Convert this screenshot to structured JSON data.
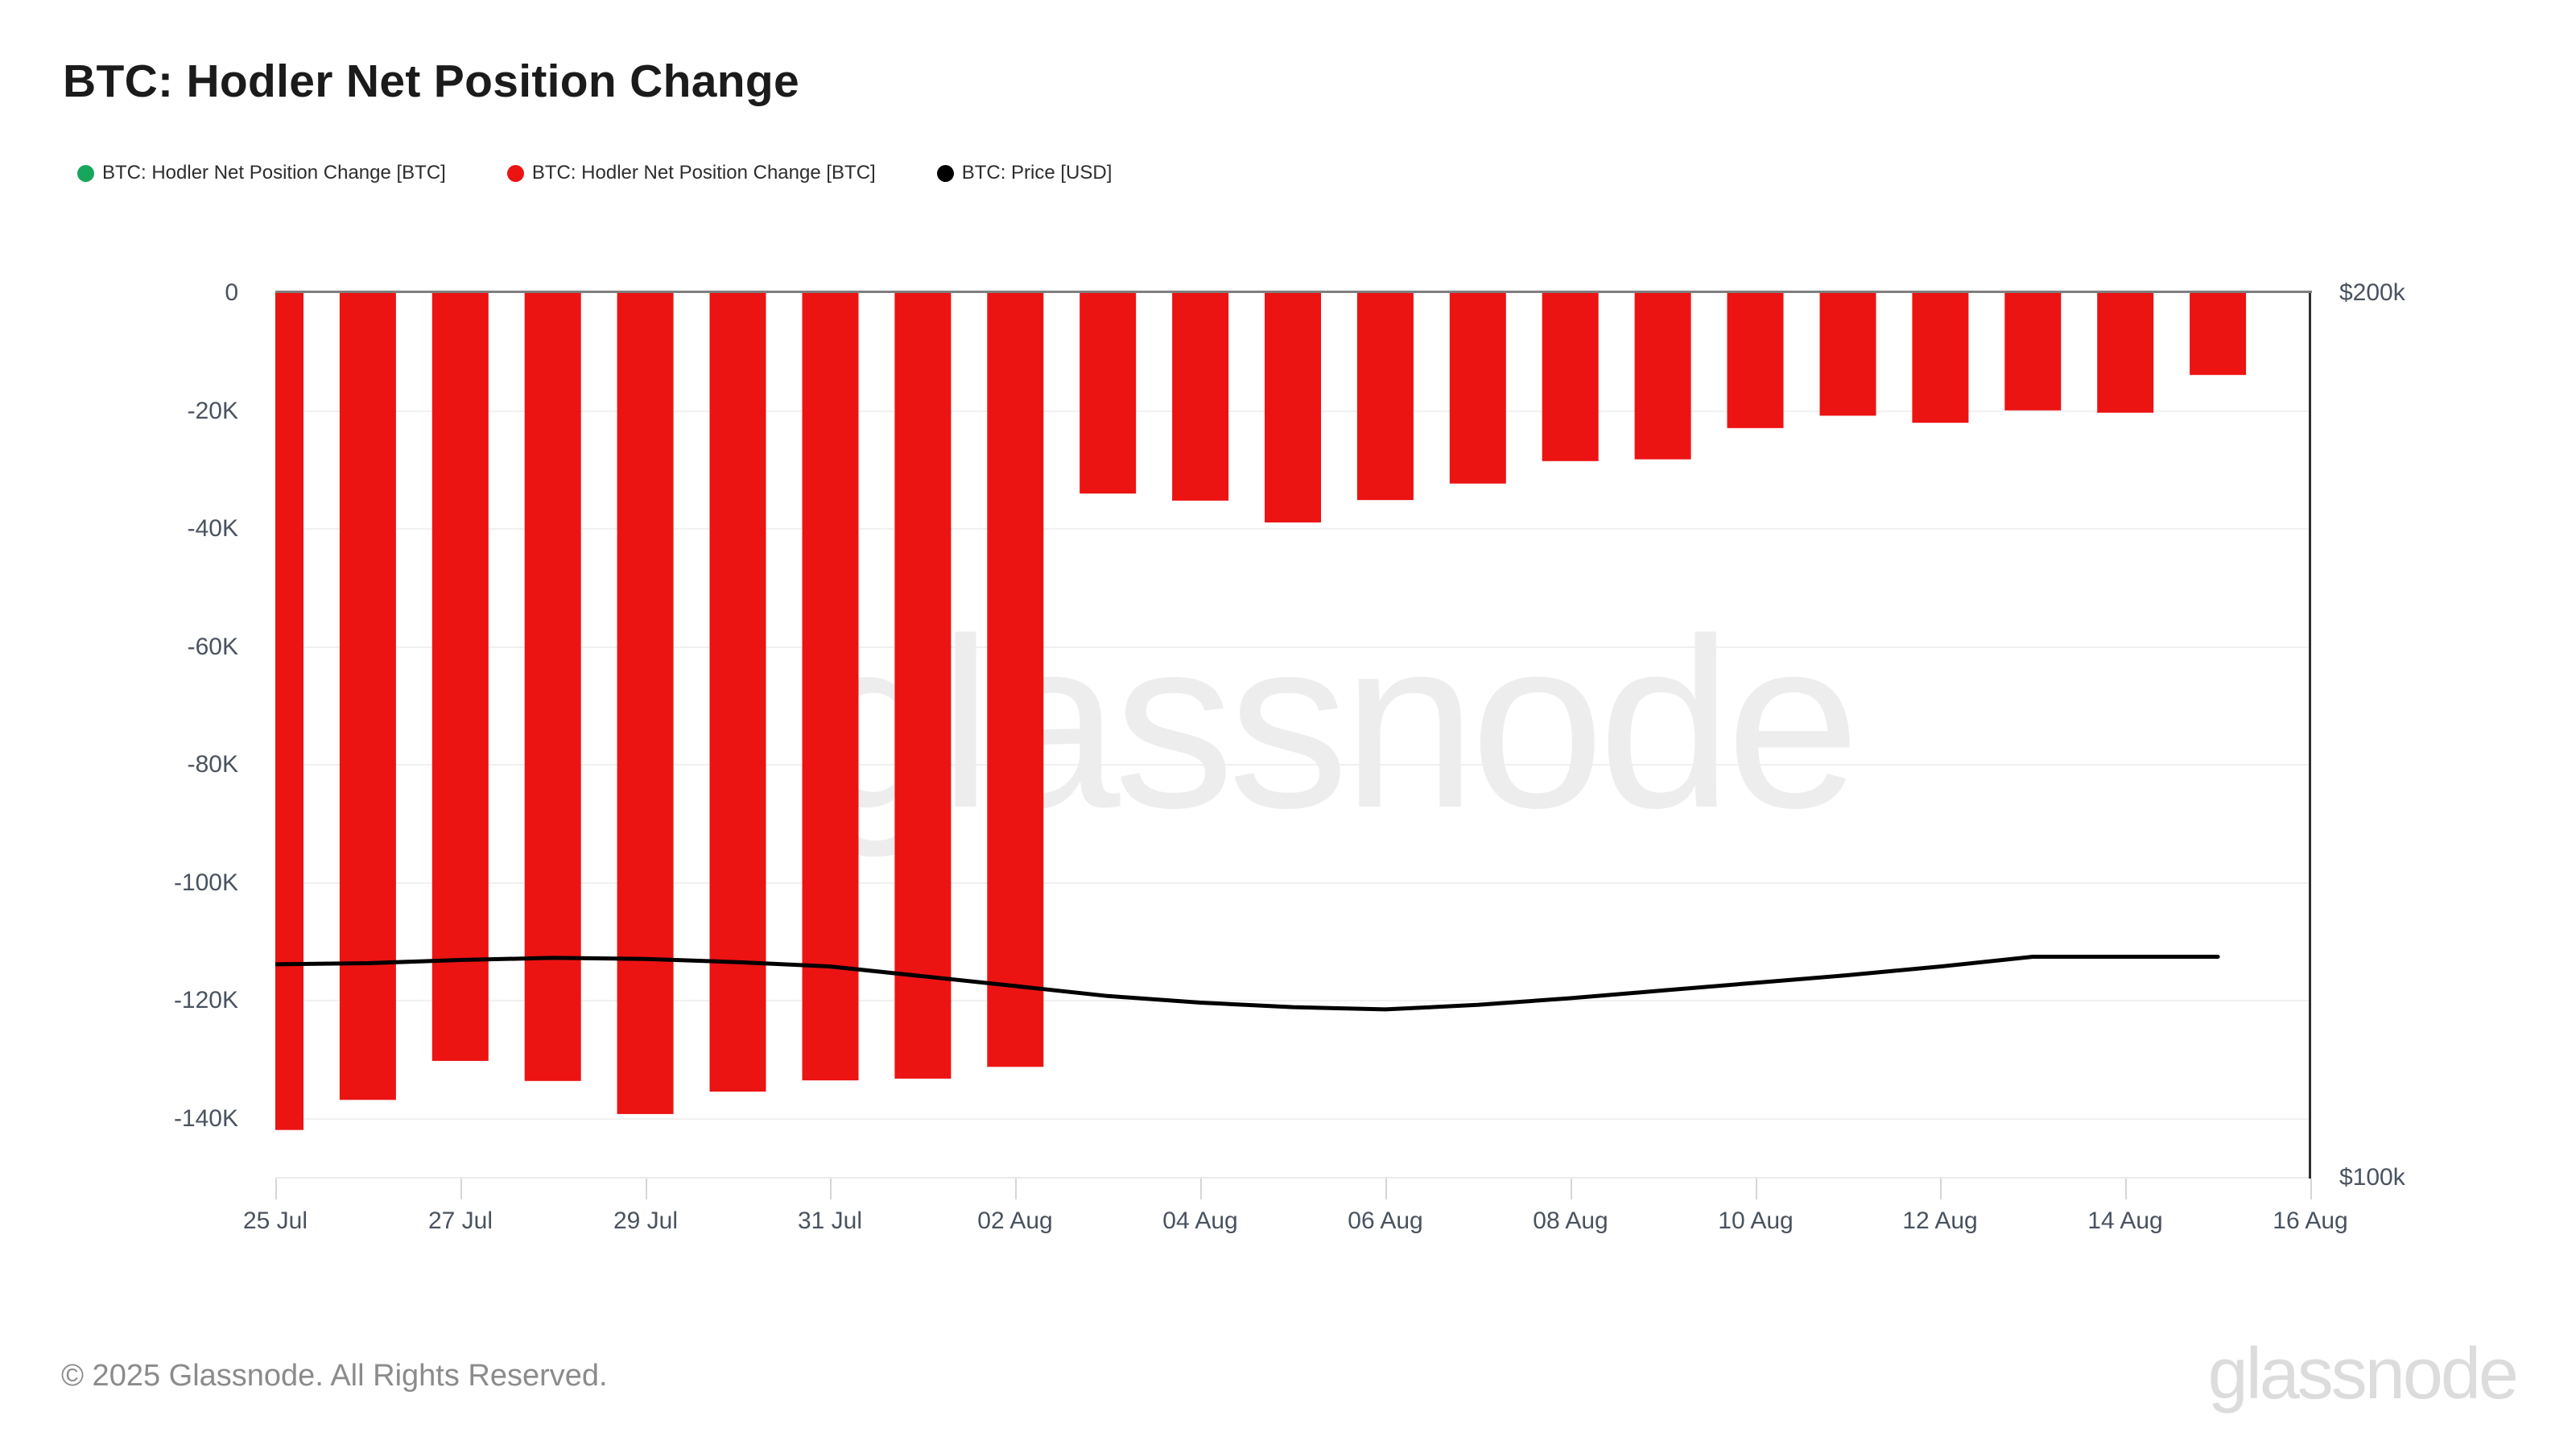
{
  "title": "BTC: Hodler Net Position Change",
  "legend": {
    "items": [
      {
        "label": "BTC: Hodler Net Position Change [BTC]",
        "color": "#17a65c"
      },
      {
        "label": "BTC: Hodler Net Position Change [BTC]",
        "color": "#ec1313"
      },
      {
        "label": "BTC: Price [USD]",
        "color": "#000000"
      }
    ]
  },
  "watermark": "glassnode",
  "footer": {
    "copyright": "© 2025 Glassnode. All Rights Reserved.",
    "brand": "glassnode"
  },
  "chart_data": {
    "type": "bar",
    "title": "BTC: Hodler Net Position Change",
    "categories": [
      "25 Jul",
      "26 Jul",
      "27 Jul",
      "28 Jul",
      "29 Jul",
      "30 Jul",
      "31 Jul",
      "01 Aug",
      "02 Aug",
      "03 Aug",
      "04 Aug",
      "05 Aug",
      "06 Aug",
      "07 Aug",
      "08 Aug",
      "09 Aug",
      "10 Aug",
      "11 Aug",
      "12 Aug",
      "13 Aug",
      "14 Aug",
      "15 Aug"
    ],
    "series": [
      {
        "name": "BTC: Hodler Net Position Change [BTC]",
        "type": "bar",
        "color": "#ec1313",
        "axis": "left",
        "values": [
          -141900,
          -136800,
          -130200,
          -133600,
          -139200,
          -135400,
          -133500,
          -133200,
          -131200,
          -34000,
          -35200,
          -38900,
          -35100,
          -32300,
          -28500,
          -28200,
          -22900,
          -20800,
          -22000,
          -19900,
          -20300,
          -13900
        ]
      },
      {
        "name": "BTC: Price [USD]",
        "type": "line",
        "color": "#000000",
        "axis": "right",
        "values": [
          118200,
          118300,
          118600,
          118800,
          118700,
          118400,
          118000,
          117100,
          116200,
          115300,
          114700,
          114300,
          114100,
          114500,
          115100,
          115800,
          116500,
          117200,
          118000,
          118900,
          118900,
          118900
        ]
      }
    ],
    "left_axis": {
      "ticks": [
        "0",
        "-20K",
        "-40K",
        "-60K",
        "-80K",
        "-100K",
        "-120K",
        "-140K"
      ],
      "tick_values": [
        0,
        -20000,
        -40000,
        -60000,
        -80000,
        -100000,
        -120000,
        -140000
      ],
      "min": -150000,
      "max": 0
    },
    "right_axis": {
      "ticks": [
        "$200k",
        "$100k"
      ],
      "tick_values": [
        200000,
        100000
      ],
      "min": 100000,
      "max": 200000,
      "scale": "log"
    },
    "x_axis": {
      "tick_labels": [
        "25 Jul",
        "27 Jul",
        "29 Jul",
        "31 Jul",
        "02 Aug",
        "04 Aug",
        "06 Aug",
        "08 Aug",
        "10 Aug",
        "12 Aug",
        "14 Aug",
        "16 Aug"
      ],
      "tick_step_days": 2,
      "span_days": 22
    },
    "grid": "horizontal",
    "legend_position": "top-left"
  }
}
